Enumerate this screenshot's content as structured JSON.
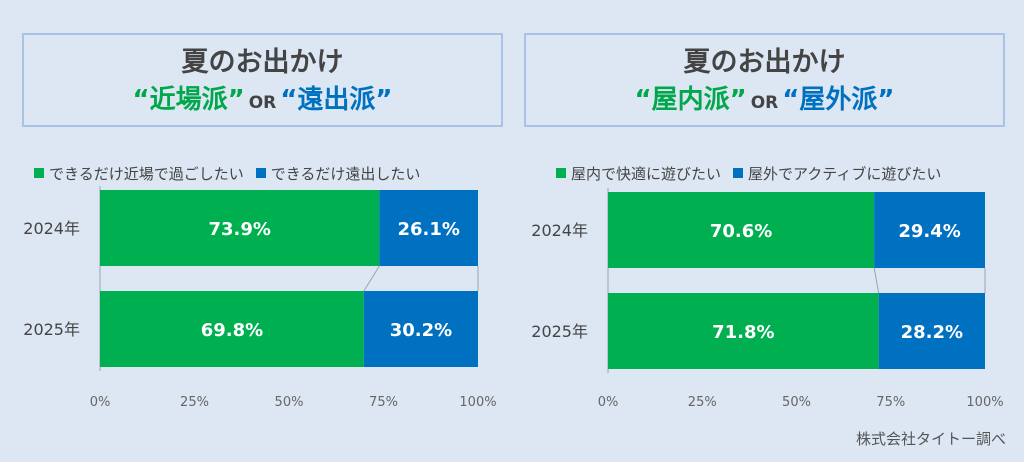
{
  "colors": {
    "green": "#00b050",
    "blue": "#0070c0",
    "background": "#dce7f3"
  },
  "panels": [
    {
      "title_line1": "夏のお出かけ",
      "option_a": "“近場派”",
      "or_text": "OR",
      "option_b": "“遠出派”",
      "legend": [
        "できるだけ近場で過ごしたい",
        "できるだけ遠出したい"
      ]
    },
    {
      "title_line1": "夏のお出かけ",
      "option_a": "“屋内派”",
      "or_text": "OR",
      "option_b": "“屋外派”",
      "legend": [
        "屋内で快適に遊びたい",
        "屋外でアクティブに遊びたい"
      ]
    }
  ],
  "source": "株式会社タイトー調べ",
  "chart_data": [
    {
      "type": "bar",
      "orientation": "horizontal",
      "stacked": true,
      "categories": [
        "2024年",
        "2025年"
      ],
      "series": [
        {
          "name": "できるだけ近場で過ごしたい",
          "values": [
            73.9,
            69.8
          ],
          "labels": [
            "73.9%",
            "69.8%"
          ]
        },
        {
          "name": "できるだけ遠出したい",
          "values": [
            26.1,
            30.2
          ],
          "labels": [
            "26.1%",
            "30.2%"
          ]
        }
      ],
      "xlim": [
        0,
        100
      ],
      "xticks": [
        "0%",
        "25%",
        "50%",
        "75%",
        "100%"
      ],
      "legend_position": "top",
      "grid": false
    },
    {
      "type": "bar",
      "orientation": "horizontal",
      "stacked": true,
      "categories": [
        "2024年",
        "2025年"
      ],
      "series": [
        {
          "name": "屋内で快適に遊びたい",
          "values": [
            70.6,
            71.8
          ],
          "labels": [
            "70.6%",
            "71.8%"
          ]
        },
        {
          "name": "屋外でアクティブに遊びたい",
          "values": [
            29.4,
            28.2
          ],
          "labels": [
            "29.4%",
            "28.2%"
          ]
        }
      ],
      "xlim": [
        0,
        100
      ],
      "xticks": [
        "0%",
        "25%",
        "50%",
        "75%",
        "100%"
      ],
      "legend_position": "top",
      "grid": false
    }
  ]
}
